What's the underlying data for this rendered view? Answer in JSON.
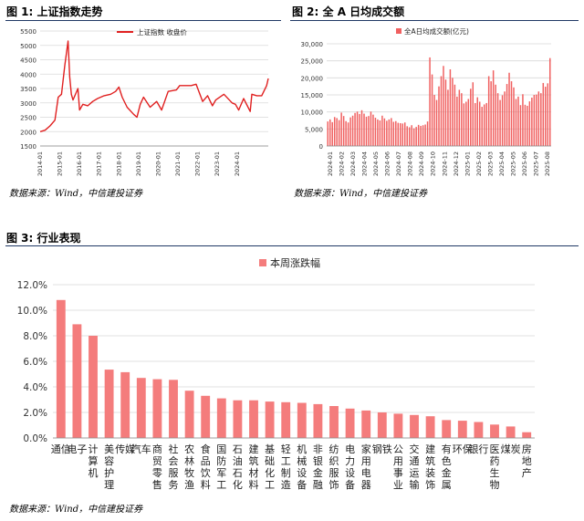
{
  "figures": [
    {
      "label": "图 1:",
      "title": "上证指数走势",
      "source": "数据来源：Wind，中信建投证券"
    },
    {
      "label": "图 2:",
      "title": "全 A 日均成交额",
      "source": "数据来源：Wind，中信建投证券"
    },
    {
      "label": "图 3:",
      "title": "行业表现",
      "source": "数据来源：Wind，中信建投证券"
    }
  ],
  "colors": {
    "line": "#e02020",
    "bar": "#f06060",
    "bar3": "#f47c7c",
    "grid": "#d9d9d9",
    "rule": "#1f3864"
  },
  "chart_data": [
    {
      "type": "line",
      "title": "",
      "legend": [
        "上证指数 收盘价"
      ],
      "legend_position": "top",
      "ylim": [
        1500,
        5500
      ],
      "yticks": [
        "1500",
        "2000",
        "2500",
        "3000",
        "3500",
        "4000",
        "4500",
        "5000",
        "5500"
      ],
      "xticks": [
        "2014-01",
        "2015-01",
        "2016-01",
        "2017-01",
        "2018-01",
        "2019-01",
        "2020-01",
        "2021-01",
        "2022-01",
        "2023-01",
        "2024-01",
        "2025-01"
      ],
      "grid": true,
      "series": [
        {
          "name": "上证指数 收盘价",
          "x": [
            "2014-01",
            "2014-04",
            "2014-07",
            "2014-10",
            "2014-12",
            "2015-02",
            "2015-04",
            "2015-06",
            "2015-07",
            "2015-08",
            "2015-09",
            "2015-12",
            "2016-01",
            "2016-03",
            "2016-06",
            "2016-09",
            "2016-12",
            "2017-04",
            "2017-08",
            "2017-11",
            "2018-01",
            "2018-03",
            "2018-06",
            "2018-10",
            "2018-12",
            "2019-02",
            "2019-04",
            "2019-08",
            "2019-12",
            "2020-03",
            "2020-07",
            "2020-12",
            "2021-02",
            "2021-09",
            "2021-12",
            "2022-04",
            "2022-07",
            "2022-10",
            "2022-12",
            "2023-05",
            "2023-10",
            "2023-12",
            "2024-02",
            "2024-05",
            "2024-09",
            "2024-10",
            "2025-01",
            "2025-04",
            "2025-07",
            "2025-08"
          ],
          "values": [
            2000,
            2050,
            2200,
            2400,
            3200,
            3300,
            4300,
            5150,
            3900,
            3300,
            3100,
            3500,
            2750,
            2950,
            2900,
            3050,
            3150,
            3250,
            3300,
            3400,
            3550,
            3200,
            2850,
            2600,
            2500,
            2950,
            3200,
            2850,
            3050,
            2750,
            3400,
            3450,
            3600,
            3600,
            3650,
            3050,
            3250,
            2900,
            3100,
            3300,
            3000,
            2950,
            2750,
            3150,
            2700,
            3300,
            3250,
            3250,
            3600,
            3850
          ]
        }
      ]
    },
    {
      "type": "bar",
      "title": "",
      "legend": [
        "全A日均成交额(亿元)"
      ],
      "legend_position": "top",
      "ylim": [
        0,
        30000
      ],
      "yticks": [
        "0",
        "5,000",
        "10,000",
        "15,000",
        "20,000",
        "25,000",
        "30,000"
      ],
      "xticks": [
        "2024-01",
        "2024-02",
        "2024-03",
        "2024-04",
        "2024-05",
        "2024-06",
        "2024-07",
        "2024-08",
        "2024-09",
        "2024-10",
        "2024-11",
        "2024-12",
        "2025-01",
        "2025-02",
        "2025-03",
        "2025-04",
        "2025-05",
        "2025-06",
        "2025-07",
        "2025-08"
      ],
      "grid": true,
      "series": [
        {
          "name": "全A日均成交额(亿元)",
          "values": [
            7200,
            7800,
            7000,
            8500,
            8200,
            7600,
            9800,
            8800,
            7300,
            6900,
            8400,
            8900,
            9700,
            10100,
            9400,
            10500,
            9500,
            8600,
            8800,
            10100,
            9200,
            8300,
            7800,
            7500,
            8900,
            8100,
            7400,
            7800,
            8200,
            7100,
            7300,
            6800,
            6700,
            6600,
            6900,
            5800,
            5500,
            6100,
            5200,
            5600,
            6200,
            5900,
            6100,
            6300,
            7200,
            26000,
            21000,
            15000,
            13500,
            17500,
            20500,
            23500,
            19500,
            16500,
            22500,
            20000,
            18000,
            14500,
            16500,
            15500,
            12500,
            13000,
            13800,
            16800,
            18700,
            12600,
            14300,
            13000,
            11500,
            12200,
            12600,
            20500,
            19000,
            22200,
            18000,
            15500,
            13500,
            14900,
            16000,
            18200,
            21500,
            19000,
            17200,
            13800,
            14500,
            12000,
            15200,
            12100,
            11800,
            13100,
            14200,
            15000,
            15100,
            16000,
            15500,
            18500,
            17400,
            18400,
            25800
          ]
        }
      ]
    },
    {
      "type": "bar",
      "title": "",
      "legend": [
        "本周涨跌幅"
      ],
      "legend_position": "top",
      "ylim": [
        0,
        12
      ],
      "yticks": [
        "0.0%",
        "2.0%",
        "4.0%",
        "6.0%",
        "8.0%",
        "10.0%",
        "12.0%"
      ],
      "grid": true,
      "categories": [
        "通信",
        "电子",
        "计算机",
        "美容护理",
        "传媒",
        "汽车",
        "商贸零售",
        "社会服务",
        "农林牧渔",
        "食品饮料",
        "国防军工",
        "石油石化",
        "建筑材料",
        "基础化工",
        "轻工制造",
        "机械设备",
        "非银金融",
        "纺织服饰",
        "电力设备",
        "家用电器",
        "钢铁",
        "公用事业",
        "交通运输",
        "建筑装饰",
        "有色金属",
        "环保",
        "银行",
        "医药生物",
        "煤炭",
        "房地产"
      ],
      "series": [
        {
          "name": "本周涨跌幅",
          "values": [
            10.8,
            8.9,
            8.0,
            5.35,
            5.15,
            4.7,
            4.6,
            4.55,
            3.7,
            3.3,
            3.1,
            2.95,
            2.95,
            2.85,
            2.8,
            2.75,
            2.65,
            2.5,
            2.3,
            2.15,
            2.0,
            1.9,
            1.8,
            1.7,
            1.4,
            1.35,
            1.25,
            1.05,
            0.9,
            0.45
          ]
        }
      ]
    }
  ]
}
